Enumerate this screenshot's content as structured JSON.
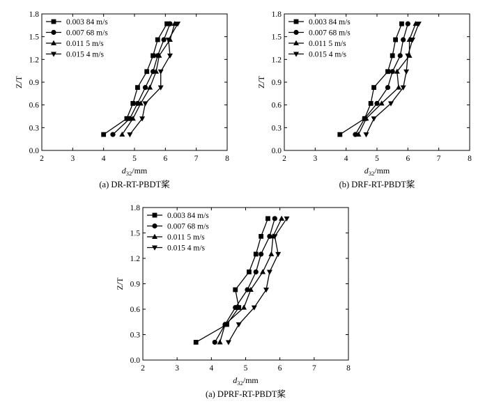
{
  "chart_data": [
    {
      "type": "line",
      "caption": "(a) DR-RT-PBDT桨",
      "xlabel_main": "d",
      "xlabel_sub": "32",
      "xlabel_unit": "/mm",
      "ylabel": "Z/T",
      "xlim": [
        2,
        8
      ],
      "ylim": [
        0,
        1.8
      ],
      "xticks": [
        "2",
        "3",
        "4",
        "5",
        "6",
        "7",
        "8"
      ],
      "yticks": [
        "0.0",
        "0.3",
        "0.6",
        "0.9",
        "1.2",
        "1.5",
        "1.8"
      ],
      "legend_position": "top-left",
      "series": [
        {
          "name": "0.003 84 m/s",
          "marker": "square",
          "points": [
            [
              4.0,
              0.21
            ],
            [
              4.75,
              0.42
            ],
            [
              4.95,
              0.62
            ],
            [
              5.1,
              0.83
            ],
            [
              5.4,
              1.04
            ],
            [
              5.6,
              1.25
            ],
            [
              5.75,
              1.46
            ],
            [
              6.05,
              1.67
            ]
          ]
        },
        {
          "name": "0.007 68 m/s",
          "marker": "circle",
          "points": [
            [
              4.3,
              0.21
            ],
            [
              4.85,
              0.42
            ],
            [
              5.1,
              0.62
            ],
            [
              5.35,
              0.83
            ],
            [
              5.6,
              1.04
            ],
            [
              5.75,
              1.25
            ],
            [
              5.95,
              1.46
            ],
            [
              6.15,
              1.67
            ]
          ]
        },
        {
          "name": "0.011 5 m/s",
          "marker": "triangle-up",
          "points": [
            [
              4.6,
              0.21
            ],
            [
              4.95,
              0.42
            ],
            [
              5.2,
              0.62
            ],
            [
              5.5,
              0.83
            ],
            [
              5.7,
              1.04
            ],
            [
              5.8,
              1.25
            ],
            [
              6.15,
              1.46
            ],
            [
              6.3,
              1.67
            ]
          ]
        },
        {
          "name": "0.015 4 m/s",
          "marker": "triangle-down",
          "points": [
            [
              4.85,
              0.21
            ],
            [
              5.25,
              0.42
            ],
            [
              5.35,
              0.62
            ],
            [
              5.85,
              0.83
            ],
            [
              5.85,
              1.04
            ],
            [
              6.15,
              1.25
            ],
            [
              6.1,
              1.46
            ],
            [
              6.4,
              1.67
            ]
          ]
        }
      ]
    },
    {
      "type": "line",
      "caption": "(b) DRF-RT-PBDT桨",
      "xlabel_main": "d",
      "xlabel_sub": "32",
      "xlabel_unit": "/mm",
      "ylabel": "Z/T",
      "xlim": [
        2,
        8
      ],
      "ylim": [
        0,
        1.8
      ],
      "xticks": [
        "2",
        "3",
        "4",
        "5",
        "6",
        "7",
        "8"
      ],
      "yticks": [
        "0.0",
        "0.3",
        "0.6",
        "0.9",
        "1.2",
        "1.5",
        "1.8"
      ],
      "legend_position": "top-left",
      "series": [
        {
          "name": "0.003 84 m/s",
          "marker": "square",
          "points": [
            [
              3.8,
              0.21
            ],
            [
              4.6,
              0.42
            ],
            [
              4.8,
              0.62
            ],
            [
              4.9,
              0.83
            ],
            [
              5.35,
              1.04
            ],
            [
              5.5,
              1.25
            ],
            [
              5.6,
              1.46
            ],
            [
              5.8,
              1.67
            ]
          ]
        },
        {
          "name": "0.007 68 m/s",
          "marker": "circle",
          "points": [
            [
              4.3,
              0.21
            ],
            [
              4.6,
              0.42
            ],
            [
              5.0,
              0.62
            ],
            [
              5.35,
              0.83
            ],
            [
              5.5,
              1.04
            ],
            [
              5.75,
              1.25
            ],
            [
              5.85,
              1.46
            ],
            [
              6.0,
              1.67
            ]
          ]
        },
        {
          "name": "0.011 5 m/s",
          "marker": "triangle-up",
          "points": [
            [
              4.4,
              0.21
            ],
            [
              4.65,
              0.42
            ],
            [
              5.15,
              0.62
            ],
            [
              5.7,
              0.83
            ],
            [
              5.65,
              1.04
            ],
            [
              6.05,
              1.25
            ],
            [
              6.05,
              1.46
            ],
            [
              6.25,
              1.67
            ]
          ]
        },
        {
          "name": "0.015 4 m/s",
          "marker": "triangle-down",
          "points": [
            [
              4.65,
              0.21
            ],
            [
              4.9,
              0.42
            ],
            [
              5.45,
              0.62
            ],
            [
              5.85,
              0.83
            ],
            [
              5.95,
              1.04
            ],
            [
              6.0,
              1.25
            ],
            [
              6.15,
              1.46
            ],
            [
              6.35,
              1.67
            ]
          ]
        }
      ]
    },
    {
      "type": "line",
      "caption": "(a) DPRF-RT-PBDT桨",
      "xlabel_main": "d",
      "xlabel_sub": "32",
      "xlabel_unit": "/mm",
      "ylabel": "Z/T",
      "xlim": [
        2,
        8
      ],
      "ylim": [
        0,
        1.8
      ],
      "xticks": [
        "2",
        "3",
        "4",
        "5",
        "6",
        "7",
        "8"
      ],
      "yticks": [
        "0.0",
        "0.3",
        "0.6",
        "0.9",
        "1.2",
        "1.5",
        "1.8"
      ],
      "legend_position": "top-left",
      "series": [
        {
          "name": "0.003 84 m/s",
          "marker": "square",
          "points": [
            [
              3.55,
              0.21
            ],
            [
              4.45,
              0.42
            ],
            [
              4.8,
              0.62
            ],
            [
              4.7,
              0.83
            ],
            [
              5.1,
              1.04
            ],
            [
              5.3,
              1.25
            ],
            [
              5.45,
              1.46
            ],
            [
              5.65,
              1.67
            ]
          ]
        },
        {
          "name": "0.007 68 m/s",
          "marker": "circle",
          "points": [
            [
              4.1,
              0.21
            ],
            [
              4.4,
              0.42
            ],
            [
              4.7,
              0.62
            ],
            [
              5.05,
              0.83
            ],
            [
              5.3,
              1.04
            ],
            [
              5.45,
              1.25
            ],
            [
              5.7,
              1.46
            ],
            [
              5.85,
              1.67
            ]
          ]
        },
        {
          "name": "0.011 5 m/s",
          "marker": "triangle-up",
          "points": [
            [
              4.25,
              0.21
            ],
            [
              4.4,
              0.42
            ],
            [
              4.95,
              0.62
            ],
            [
              5.15,
              0.83
            ],
            [
              5.5,
              1.04
            ],
            [
              5.75,
              1.25
            ],
            [
              5.8,
              1.46
            ],
            [
              6.05,
              1.67
            ]
          ]
        },
        {
          "name": "0.015 4 m/s",
          "marker": "triangle-down",
          "points": [
            [
              4.5,
              0.21
            ],
            [
              4.8,
              0.42
            ],
            [
              5.25,
              0.62
            ],
            [
              5.6,
              0.83
            ],
            [
              5.7,
              1.04
            ],
            [
              5.95,
              1.25
            ],
            [
              5.85,
              1.46
            ],
            [
              6.2,
              1.67
            ]
          ]
        }
      ]
    }
  ]
}
